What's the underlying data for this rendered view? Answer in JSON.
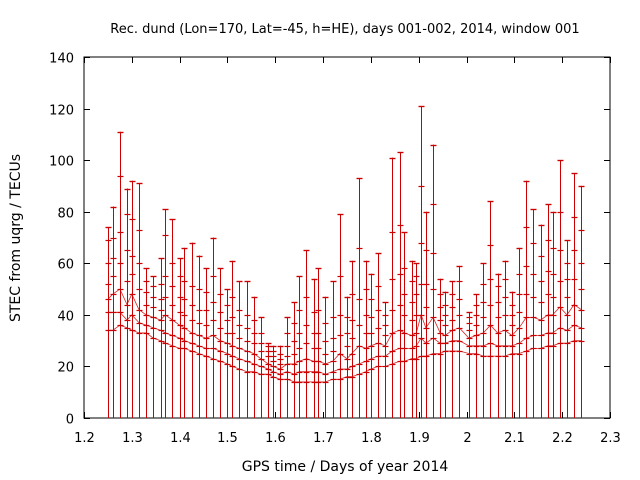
{
  "chart_data": {
    "type": "scatter",
    "title": "Rec. dund (Lon=170, Lat=-45, h=HE), days 001-002, 2014, window 001",
    "xlabel": "GPS time / Days of year 2014",
    "ylabel": "STEC from uqrg / TECUs",
    "xlim": [
      1.2,
      2.3
    ],
    "ylim": [
      0,
      140
    ],
    "xticks": [
      "1.2",
      "1.3",
      "1.4",
      "1.5",
      "1.6",
      "1.7",
      "1.8",
      "1.9",
      "2",
      "2.1",
      "2.2",
      "2.3"
    ],
    "yticks": [
      "0",
      "20",
      "40",
      "60",
      "80",
      "100",
      "120",
      "140"
    ],
    "grid": false,
    "series_color": "#cc0000",
    "epochs": [
      {
        "x": 1.25,
        "max": 74,
        "values": [
          34,
          41,
          46,
          52,
          60,
          69,
          74
        ]
      },
      {
        "x": 1.26,
        "max": 82,
        "values": [
          34,
          41,
          48,
          55,
          62,
          70,
          82
        ]
      },
      {
        "x": 1.275,
        "max": 111,
        "values": [
          36,
          41,
          50,
          60,
          72,
          94,
          111
        ]
      },
      {
        "x": 1.29,
        "max": 89,
        "values": [
          35,
          38,
          44,
          53,
          65,
          79,
          89
        ]
      },
      {
        "x": 1.3,
        "max": 92,
        "values": [
          34,
          40,
          48,
          56,
          63,
          77,
          92
        ]
      },
      {
        "x": 1.315,
        "max": 91,
        "values": [
          33,
          37,
          42,
          50,
          60,
          73,
          91
        ]
      },
      {
        "x": 1.33,
        "max": 58,
        "values": [
          33,
          36,
          40,
          44,
          49,
          53,
          58
        ]
      },
      {
        "x": 1.345,
        "max": 55,
        "values": [
          31,
          35,
          39,
          43,
          47,
          51,
          55
        ]
      },
      {
        "x": 1.36,
        "max": 62,
        "values": [
          30,
          34,
          38,
          42,
          46,
          52,
          62
        ]
      },
      {
        "x": 1.37,
        "max": 81,
        "values": [
          29,
          33,
          40,
          47,
          55,
          71,
          81
        ]
      },
      {
        "x": 1.385,
        "max": 77,
        "values": [
          28,
          32,
          38,
          44,
          51,
          60,
          77
        ]
      },
      {
        "x": 1.4,
        "max": 62,
        "values": [
          27,
          31,
          36,
          41,
          47,
          55,
          62
        ]
      },
      {
        "x": 1.41,
        "max": 66,
        "values": [
          27,
          30,
          35,
          40,
          46,
          53,
          66
        ]
      },
      {
        "x": 1.425,
        "max": 68,
        "values": [
          26,
          29,
          33,
          38,
          44,
          51,
          68
        ]
      },
      {
        "x": 1.44,
        "max": 63,
        "values": [
          25,
          28,
          32,
          37,
          42,
          50,
          63
        ]
      },
      {
        "x": 1.455,
        "max": 58,
        "values": [
          24,
          27,
          31,
          36,
          42,
          49,
          58
        ]
      },
      {
        "x": 1.47,
        "max": 70,
        "values": [
          23,
          27,
          32,
          38,
          45,
          55,
          70
        ]
      },
      {
        "x": 1.485,
        "max": 58,
        "values": [
          22,
          26,
          30,
          35,
          41,
          48,
          58
        ]
      },
      {
        "x": 1.5,
        "max": 50,
        "values": [
          21,
          25,
          29,
          33,
          38,
          44,
          50
        ]
      },
      {
        "x": 1.51,
        "max": 61,
        "values": [
          20,
          24,
          28,
          33,
          39,
          47,
          61
        ]
      },
      {
        "x": 1.525,
        "max": 53,
        "values": [
          19,
          23,
          27,
          31,
          36,
          42,
          53
        ]
      },
      {
        "x": 1.54,
        "max": 53,
        "values": [
          18,
          22,
          26,
          30,
          35,
          40,
          53
        ]
      },
      {
        "x": 1.555,
        "max": 47,
        "values": [
          18,
          21,
          25,
          29,
          33,
          38,
          47
        ]
      },
      {
        "x": 1.57,
        "max": 39,
        "values": [
          17,
          20,
          23,
          26,
          29,
          33,
          39
        ]
      },
      {
        "x": 1.585,
        "max": 29,
        "values": [
          17,
          19,
          21,
          24,
          26,
          28,
          29
        ]
      },
      {
        "x": 1.595,
        "max": 28,
        "values": [
          16,
          18,
          20,
          22,
          24,
          26,
          28
        ]
      },
      {
        "x": 1.61,
        "max": 28,
        "values": [
          15,
          17,
          19,
          21,
          23,
          25,
          28
        ]
      },
      {
        "x": 1.625,
        "max": 39,
        "values": [
          15,
          18,
          21,
          24,
          28,
          33,
          39
        ]
      },
      {
        "x": 1.64,
        "max": 45,
        "values": [
          14,
          17,
          21,
          25,
          30,
          37,
          45
        ]
      },
      {
        "x": 1.65,
        "max": 55,
        "values": [
          14,
          18,
          22,
          27,
          33,
          42,
          55
        ]
      },
      {
        "x": 1.665,
        "max": 65,
        "values": [
          14,
          18,
          23,
          29,
          36,
          47,
          65
        ]
      },
      {
        "x": 1.68,
        "max": 54,
        "values": [
          14,
          18,
          22,
          27,
          33,
          41,
          54
        ]
      },
      {
        "x": 1.69,
        "max": 58,
        "values": [
          14,
          18,
          22,
          27,
          33,
          42,
          58
        ]
      },
      {
        "x": 1.705,
        "max": 47,
        "values": [
          14,
          17,
          21,
          25,
          30,
          37,
          47
        ]
      },
      {
        "x": 1.72,
        "max": 53,
        "values": [
          15,
          18,
          22,
          26,
          31,
          39,
          53
        ]
      },
      {
        "x": 1.735,
        "max": 79,
        "values": [
          15,
          19,
          25,
          32,
          40,
          55,
          79
        ]
      },
      {
        "x": 1.75,
        "max": 47,
        "values": [
          16,
          19,
          23,
          28,
          33,
          39,
          47
        ]
      },
      {
        "x": 1.76,
        "max": 61,
        "values": [
          16,
          20,
          25,
          31,
          38,
          48,
          61
        ]
      },
      {
        "x": 1.775,
        "max": 93,
        "values": [
          17,
          21,
          28,
          36,
          46,
          66,
          93
        ]
      },
      {
        "x": 1.79,
        "max": 61,
        "values": [
          18,
          22,
          27,
          33,
          40,
          50,
          61
        ]
      },
      {
        "x": 1.8,
        "max": 56,
        "values": [
          19,
          23,
          28,
          33,
          39,
          46,
          56
        ]
      },
      {
        "x": 1.815,
        "max": 64,
        "values": [
          20,
          24,
          29,
          35,
          42,
          51,
          64
        ]
      },
      {
        "x": 1.83,
        "max": 45,
        "values": [
          20,
          24,
          28,
          32,
          36,
          40,
          45
        ]
      },
      {
        "x": 1.845,
        "max": 101,
        "values": [
          21,
          26,
          33,
          42,
          54,
          72,
          101
        ]
      },
      {
        "x": 1.86,
        "max": 103,
        "values": [
          22,
          27,
          34,
          44,
          56,
          75,
          103
        ]
      },
      {
        "x": 1.87,
        "max": 72,
        "values": [
          22,
          27,
          33,
          40,
          48,
          58,
          72
        ]
      },
      {
        "x": 1.885,
        "max": 61,
        "values": [
          23,
          27,
          32,
          38,
          45,
          53,
          61
        ]
      },
      {
        "x": 1.895,
        "max": 60,
        "values": [
          23,
          28,
          33,
          40,
          48,
          55,
          60
        ]
      },
      {
        "x": 1.905,
        "max": 121,
        "values": [
          24,
          31,
          40,
          52,
          68,
          90,
          121
        ]
      },
      {
        "x": 1.915,
        "max": 80,
        "values": [
          24,
          29,
          35,
          43,
          52,
          65,
          80
        ]
      },
      {
        "x": 1.93,
        "max": 106,
        "values": [
          25,
          31,
          39,
          50,
          64,
          83,
          106
        ]
      },
      {
        "x": 1.945,
        "max": 54,
        "values": [
          25,
          29,
          33,
          38,
          43,
          48,
          54
        ]
      },
      {
        "x": 1.955,
        "max": 49,
        "values": [
          26,
          29,
          32,
          36,
          40,
          44,
          49
        ]
      },
      {
        "x": 1.97,
        "max": 53,
        "values": [
          26,
          30,
          34,
          38,
          43,
          48,
          53
        ]
      },
      {
        "x": 1.985,
        "max": 59,
        "values": [
          26,
          30,
          35,
          40,
          46,
          53,
          59
        ]
      },
      {
        "x": 2.005,
        "max": 41,
        "values": [
          25,
          28,
          31,
          34,
          37,
          39,
          41
        ]
      },
      {
        "x": 2.02,
        "max": 48,
        "values": [
          25,
          28,
          32,
          36,
          40,
          44,
          48
        ]
      },
      {
        "x": 2.035,
        "max": 60,
        "values": [
          24,
          28,
          33,
          39,
          45,
          52,
          60
        ]
      },
      {
        "x": 2.05,
        "max": 84,
        "values": [
          24,
          29,
          36,
          44,
          54,
          67,
          84
        ]
      },
      {
        "x": 2.065,
        "max": 56,
        "values": [
          24,
          28,
          33,
          39,
          45,
          51,
          56
        ]
      },
      {
        "x": 2.08,
        "max": 61,
        "values": [
          24,
          28,
          34,
          40,
          47,
          54,
          61
        ]
      },
      {
        "x": 2.095,
        "max": 49,
        "values": [
          25,
          28,
          32,
          36,
          40,
          44,
          49
        ]
      },
      {
        "x": 2.11,
        "max": 66,
        "values": [
          25,
          29,
          35,
          41,
          48,
          56,
          66
        ]
      },
      {
        "x": 2.125,
        "max": 92,
        "values": [
          26,
          31,
          39,
          48,
          59,
          74,
          92
        ]
      },
      {
        "x": 2.14,
        "max": 81,
        "values": [
          27,
          32,
          39,
          47,
          56,
          68,
          81
        ]
      },
      {
        "x": 2.155,
        "max": 75,
        "values": [
          27,
          32,
          38,
          45,
          53,
          63,
          75
        ]
      },
      {
        "x": 2.17,
        "max": 83,
        "values": [
          28,
          33,
          40,
          48,
          57,
          69,
          83
        ]
      },
      {
        "x": 2.18,
        "max": 80,
        "values": [
          28,
          33,
          40,
          47,
          56,
          66,
          80
        ]
      },
      {
        "x": 2.195,
        "max": 100,
        "values": [
          29,
          35,
          43,
          53,
          65,
          80,
          100
        ]
      },
      {
        "x": 2.21,
        "max": 69,
        "values": [
          29,
          34,
          40,
          47,
          54,
          60,
          69
        ]
      },
      {
        "x": 2.225,
        "max": 95,
        "values": [
          30,
          36,
          44,
          54,
          65,
          78,
          95
        ]
      },
      {
        "x": 2.24,
        "max": 90,
        "values": [
          30,
          35,
          42,
          50,
          60,
          73,
          90
        ]
      }
    ]
  }
}
